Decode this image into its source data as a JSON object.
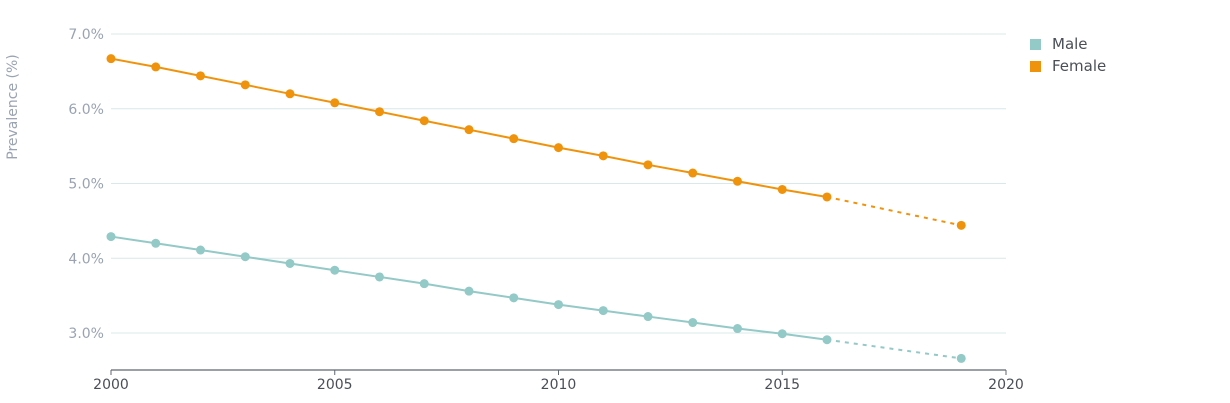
{
  "chart_data": {
    "type": "line",
    "title": "",
    "xlabel": "",
    "ylabel": "Prevalence (%)",
    "xlim": [
      2000,
      2020
    ],
    "ylim": [
      2.5,
      7.0
    ],
    "x_ticks": [
      2000,
      2005,
      2010,
      2015,
      2020
    ],
    "x_tick_labels": [
      "2000",
      "2005",
      "2010",
      "2015",
      "2020"
    ],
    "y_ticks": [
      3.0,
      4.0,
      5.0,
      6.0,
      7.0
    ],
    "y_tick_labels": [
      "3.0%",
      "4.0%",
      "5.0%",
      "6.0%",
      "7.0%"
    ],
    "grid": "horizontal",
    "legend_position": "top-right",
    "series": [
      {
        "name": "Male",
        "color": "#93c9c6",
        "points": [
          [
            2000,
            4.29
          ],
          [
            2001,
            4.2
          ],
          [
            2002,
            4.11
          ],
          [
            2003,
            4.02
          ],
          [
            2004,
            3.93
          ],
          [
            2005,
            3.84
          ],
          [
            2006,
            3.75
          ],
          [
            2007,
            3.66
          ],
          [
            2008,
            3.56
          ],
          [
            2009,
            3.47
          ],
          [
            2010,
            3.38
          ],
          [
            2011,
            3.3
          ],
          [
            2012,
            3.22
          ],
          [
            2013,
            3.14
          ],
          [
            2014,
            3.06
          ],
          [
            2015,
            2.99
          ],
          [
            2016,
            2.91
          ]
        ],
        "projected": [
          [
            2016,
            2.91
          ],
          [
            2019,
            2.66
          ]
        ]
      },
      {
        "name": "Female",
        "color": "#f0930c",
        "points": [
          [
            2000,
            6.67
          ],
          [
            2001,
            6.56
          ],
          [
            2002,
            6.44
          ],
          [
            2003,
            6.32
          ],
          [
            2004,
            6.2
          ],
          [
            2005,
            6.08
          ],
          [
            2006,
            5.96
          ],
          [
            2007,
            5.84
          ],
          [
            2008,
            5.72
          ],
          [
            2009,
            5.6
          ],
          [
            2010,
            5.48
          ],
          [
            2011,
            5.37
          ],
          [
            2012,
            5.25
          ],
          [
            2013,
            5.14
          ],
          [
            2014,
            5.03
          ],
          [
            2015,
            4.92
          ],
          [
            2016,
            4.82
          ]
        ],
        "projected": [
          [
            2016,
            4.82
          ],
          [
            2019,
            4.44
          ]
        ]
      }
    ]
  }
}
